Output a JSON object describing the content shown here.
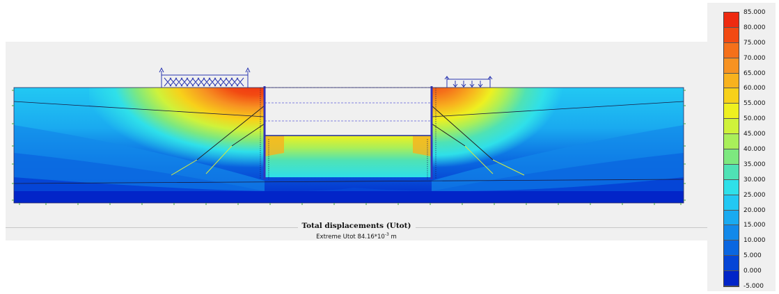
{
  "caption": {
    "title": "Total displacements (Utot)",
    "subtitle_prefix": "Extreme Utot 84.16*10",
    "subtitle_exp": "-3",
    "subtitle_unit": " m"
  },
  "legend": {
    "labels": [
      "85.000",
      "80.000",
      "75.000",
      "70.000",
      "65.000",
      "60.000",
      "55.000",
      "50.000",
      "45.000",
      "40.000",
      "35.000",
      "30.000",
      "25.000",
      "20.000",
      "15.000",
      "10.000",
      "5.000",
      "0.000",
      "-5.000"
    ],
    "colors": [
      "#ee2a10",
      "#f24a12",
      "#f5701a",
      "#f79222",
      "#f8b21e",
      "#f7d11a",
      "#eef020",
      "#cff23a",
      "#a9ef5a",
      "#7de87f",
      "#4fe2b5",
      "#2fe0e9",
      "#22c8f3",
      "#1aaaf0",
      "#1289ea",
      "#0a66e0",
      "#0545d6",
      "#0225c8"
    ]
  },
  "colors": {
    "panel": "#f0f0f0",
    "wall": "#3333bb",
    "load": "#2a36b0"
  }
}
